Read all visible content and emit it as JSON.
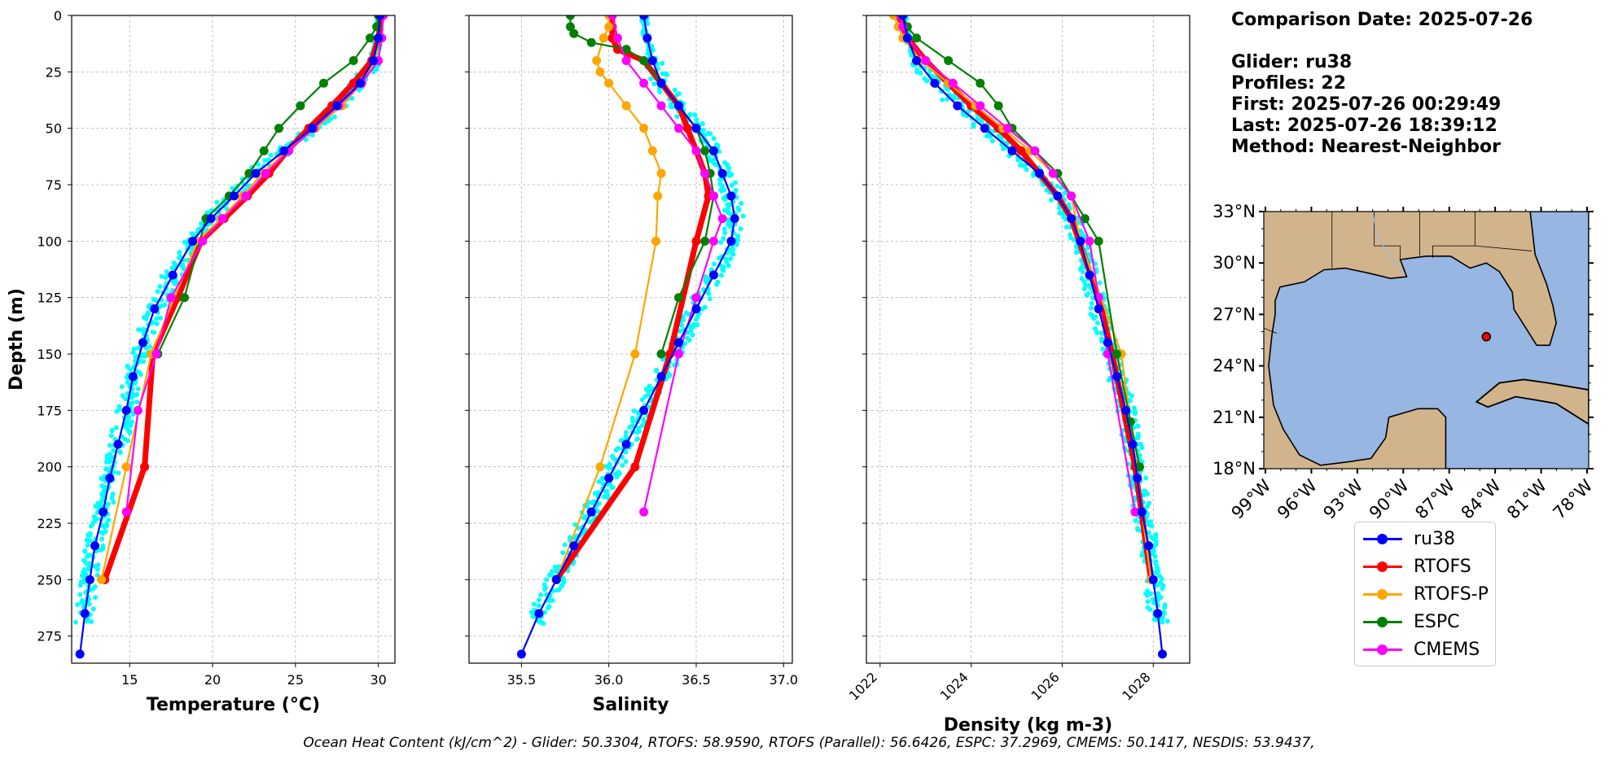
{
  "summary": {
    "comparison_date": "Comparison Date: 2025-07-26",
    "glider": "Glider: ru38",
    "profiles": "Profiles: 22",
    "first": "First: 2025-07-26 00:29:49",
    "last": "Last: 2025-07-26 18:39:12",
    "method": "Method: Nearest-Neighbor"
  },
  "footer": "Ocean Heat Content (kJ/cm^2) - Glider: 50.3304,  RTOFS: 58.9590,  RTOFS (Parallel): 56.6426,  ESPC: 37.2969,  CMEMS: 50.1417,  NESDIS: 53.9437,",
  "colors": {
    "ru38": "#0000ff",
    "RTOFS": "#ff0000",
    "RTOFS-P": "#ffa500",
    "ESPC": "#008000",
    "CMEMS": "#ff00ff",
    "glider_raw": "#00ffff",
    "land": "#d2b48c",
    "water": "#97b6e1"
  },
  "chart_data": [
    {
      "type": "line",
      "ylabel": "Depth (m)",
      "xlabel": "Temperature (°C)",
      "xlim": [
        11.5,
        31
      ],
      "ylim": [
        287,
        0
      ],
      "y_inverted": true,
      "xticks": [
        15,
        20,
        25,
        30
      ],
      "yticks": [
        0,
        25,
        50,
        75,
        100,
        125,
        150,
        175,
        200,
        225,
        250,
        275
      ],
      "grid": true,
      "series": [
        {
          "name": "ru38",
          "x": [
            30.1,
            30.0,
            29.7,
            28.9,
            27.5,
            26.0,
            24.3,
            22.6,
            21.3,
            19.9,
            18.8,
            17.6,
            16.5,
            15.8,
            15.2,
            14.8,
            14.3,
            13.8,
            13.4,
            12.9,
            12.6,
            12.3,
            12.0
          ],
          "y": [
            0,
            10,
            20,
            30,
            40,
            50,
            60,
            70,
            80,
            90,
            100,
            115,
            130,
            145,
            160,
            175,
            190,
            205,
            220,
            235,
            250,
            265,
            283
          ]
        },
        {
          "name": "RTOFS",
          "x": [
            30.2,
            30.0,
            29.6,
            28.5,
            27.2,
            25.8,
            24.5,
            23.4,
            22.1,
            20.7,
            19.3,
            17.9,
            16.4,
            15.9,
            13.5
          ],
          "y": [
            0,
            10,
            20,
            30,
            40,
            50,
            60,
            70,
            80,
            90,
            100,
            125,
            150,
            200,
            250
          ]
        },
        {
          "name": "RTOFS-P",
          "x": [
            30.1,
            30.0,
            29.8,
            29.0,
            27.8,
            26.2,
            24.5,
            23.0,
            21.8,
            20.5,
            19.1,
            16.3,
            14.8,
            13.3
          ],
          "y": [
            0,
            10,
            20,
            30,
            40,
            50,
            60,
            70,
            80,
            90,
            100,
            150,
            200,
            250
          ]
        },
        {
          "name": "ESPC",
          "x": [
            30.0,
            29.9,
            29.5,
            28.5,
            26.7,
            25.3,
            24.0,
            23.1,
            22.2,
            21.0,
            19.6,
            18.3,
            16.7
          ],
          "y": [
            0,
            5,
            10,
            20,
            30,
            40,
            50,
            60,
            70,
            80,
            90,
            125,
            150
          ]
        },
        {
          "name": "CMEMS",
          "x": [
            30.3,
            30.2,
            30.0,
            29.0,
            27.6,
            26.1,
            24.6,
            23.2,
            22.0,
            20.6,
            19.4,
            17.5,
            16.6,
            15.5,
            14.8
          ],
          "y": [
            0,
            10,
            20,
            30,
            40,
            50,
            60,
            70,
            80,
            90,
            100,
            125,
            150,
            175,
            220
          ]
        }
      ]
    },
    {
      "type": "line",
      "xlabel": "Salinity",
      "xlim": [
        35.2,
        37.05
      ],
      "ylim": [
        287,
        0
      ],
      "y_inverted": true,
      "xticks": [
        35.5,
        36.0,
        36.5,
        37.0
      ],
      "grid": true,
      "series": [
        {
          "name": "ru38",
          "x": [
            36.2,
            36.22,
            36.25,
            36.3,
            36.4,
            36.5,
            36.6,
            36.65,
            36.7,
            36.72,
            36.7,
            36.6,
            36.5,
            36.4,
            36.3,
            36.2,
            36.1,
            36.0,
            35.9,
            35.8,
            35.7,
            35.6,
            35.5
          ],
          "y": [
            0,
            10,
            20,
            30,
            40,
            50,
            60,
            70,
            80,
            90,
            100,
            115,
            130,
            145,
            160,
            175,
            190,
            205,
            220,
            235,
            250,
            265,
            283
          ]
        },
        {
          "name": "RTOFS",
          "x": [
            36.02,
            36.02,
            36.02,
            36.05,
            36.2,
            36.3,
            36.4,
            36.45,
            36.5,
            36.55,
            36.57,
            36.5,
            36.35,
            36.15,
            35.7
          ],
          "y": [
            0,
            5,
            10,
            15,
            20,
            30,
            40,
            50,
            60,
            70,
            80,
            100,
            150,
            200,
            250
          ]
        },
        {
          "name": "RTOFS-P",
          "x": [
            36.0,
            36.0,
            35.97,
            35.93,
            35.95,
            36.0,
            36.1,
            36.2,
            36.25,
            36.3,
            36.28,
            36.27,
            36.15,
            35.95,
            35.7
          ],
          "y": [
            0,
            5,
            10,
            20,
            25,
            30,
            40,
            50,
            60,
            70,
            80,
            100,
            150,
            200,
            250
          ]
        },
        {
          "name": "ESPC",
          "x": [
            35.78,
            35.78,
            35.8,
            35.9,
            36.1,
            36.2,
            36.3,
            36.4,
            36.5,
            36.55,
            36.58,
            36.6,
            36.55,
            36.4,
            36.3
          ],
          "y": [
            0,
            5,
            8,
            12,
            15,
            20,
            30,
            40,
            50,
            60,
            70,
            80,
            100,
            125,
            150
          ]
        },
        {
          "name": "CMEMS",
          "x": [
            36.02,
            36.05,
            36.1,
            36.2,
            36.3,
            36.4,
            36.5,
            36.55,
            36.6,
            36.65,
            36.6,
            36.5,
            36.4,
            36.2
          ],
          "y": [
            0,
            10,
            20,
            30,
            40,
            50,
            60,
            70,
            80,
            90,
            100,
            125,
            150,
            220
          ]
        }
      ]
    },
    {
      "type": "line",
      "xlabel": "Density (kg m-3)",
      "xlim": [
        1021.7,
        1028.8
      ],
      "ylim": [
        287,
        0
      ],
      "y_inverted": true,
      "xticks": [
        1022,
        1024,
        1026,
        1028
      ],
      "grid": true,
      "series": [
        {
          "name": "ru38",
          "x": [
            1022.5,
            1022.6,
            1022.8,
            1023.2,
            1023.7,
            1024.3,
            1024.9,
            1025.5,
            1025.9,
            1026.2,
            1026.4,
            1026.6,
            1026.8,
            1027.0,
            1027.2,
            1027.4,
            1027.55,
            1027.65,
            1027.75,
            1027.9,
            1028.0,
            1028.1,
            1028.2
          ],
          "y": [
            0,
            10,
            20,
            30,
            40,
            50,
            60,
            70,
            80,
            90,
            100,
            115,
            130,
            145,
            160,
            175,
            190,
            205,
            220,
            235,
            250,
            265,
            283
          ]
        },
        {
          "name": "RTOFS",
          "x": [
            1022.4,
            1022.5,
            1022.6,
            1023.0,
            1023.5,
            1024.0,
            1024.6,
            1025.1,
            1025.5,
            1025.9,
            1026.2,
            1026.8,
            1027.1,
            1027.6,
            1027.95
          ],
          "y": [
            0,
            5,
            10,
            20,
            30,
            40,
            50,
            60,
            70,
            80,
            90,
            125,
            150,
            200,
            250
          ]
        },
        {
          "name": "RTOFS-P",
          "x": [
            1022.3,
            1022.4,
            1022.5,
            1022.9,
            1023.5,
            1024.1,
            1024.7,
            1025.3,
            1025.8,
            1026.2,
            1026.4,
            1027.3,
            1027.95
          ],
          "y": [
            0,
            5,
            10,
            20,
            30,
            40,
            50,
            60,
            70,
            80,
            100,
            150,
            250
          ]
        },
        {
          "name": "ESPC",
          "x": [
            1022.5,
            1022.6,
            1022.8,
            1023.5,
            1024.2,
            1024.6,
            1024.9,
            1025.4,
            1025.9,
            1026.2,
            1026.5,
            1026.8,
            1027.2,
            1027.5,
            1027.7
          ],
          "y": [
            0,
            5,
            10,
            20,
            30,
            40,
            50,
            60,
            70,
            80,
            90,
            100,
            150,
            180,
            200
          ]
        },
        {
          "name": "CMEMS",
          "x": [
            1022.45,
            1022.5,
            1022.6,
            1023.0,
            1023.6,
            1024.2,
            1024.8,
            1025.4,
            1025.8,
            1026.2,
            1026.6,
            1026.8,
            1027.0,
            1027.6
          ],
          "y": [
            0,
            5,
            10,
            20,
            30,
            40,
            50,
            60,
            70,
            80,
            100,
            125,
            150,
            220
          ]
        }
      ]
    },
    {
      "type": "map",
      "lat_ticks": [
        "33°N",
        "30°N",
        "27°N",
        "24°N",
        "21°N",
        "18°N"
      ],
      "lon_ticks": [
        "99°W",
        "96°W",
        "93°W",
        "90°W",
        "87°W",
        "84°W",
        "81°W",
        "78°W"
      ],
      "lon_range": [
        -98,
        -78
      ],
      "lat_range": [
        18,
        33
      ],
      "marker": {
        "lon": -84.3,
        "lat": 25.7
      }
    }
  ],
  "legend": {
    "items": [
      {
        "key": "ru38",
        "label": "ru38"
      },
      {
        "key": "RTOFS",
        "label": "RTOFS"
      },
      {
        "key": "RTOFS-P",
        "label": "RTOFS-P"
      },
      {
        "key": "ESPC",
        "label": "ESPC"
      },
      {
        "key": "CMEMS",
        "label": "CMEMS"
      }
    ]
  }
}
